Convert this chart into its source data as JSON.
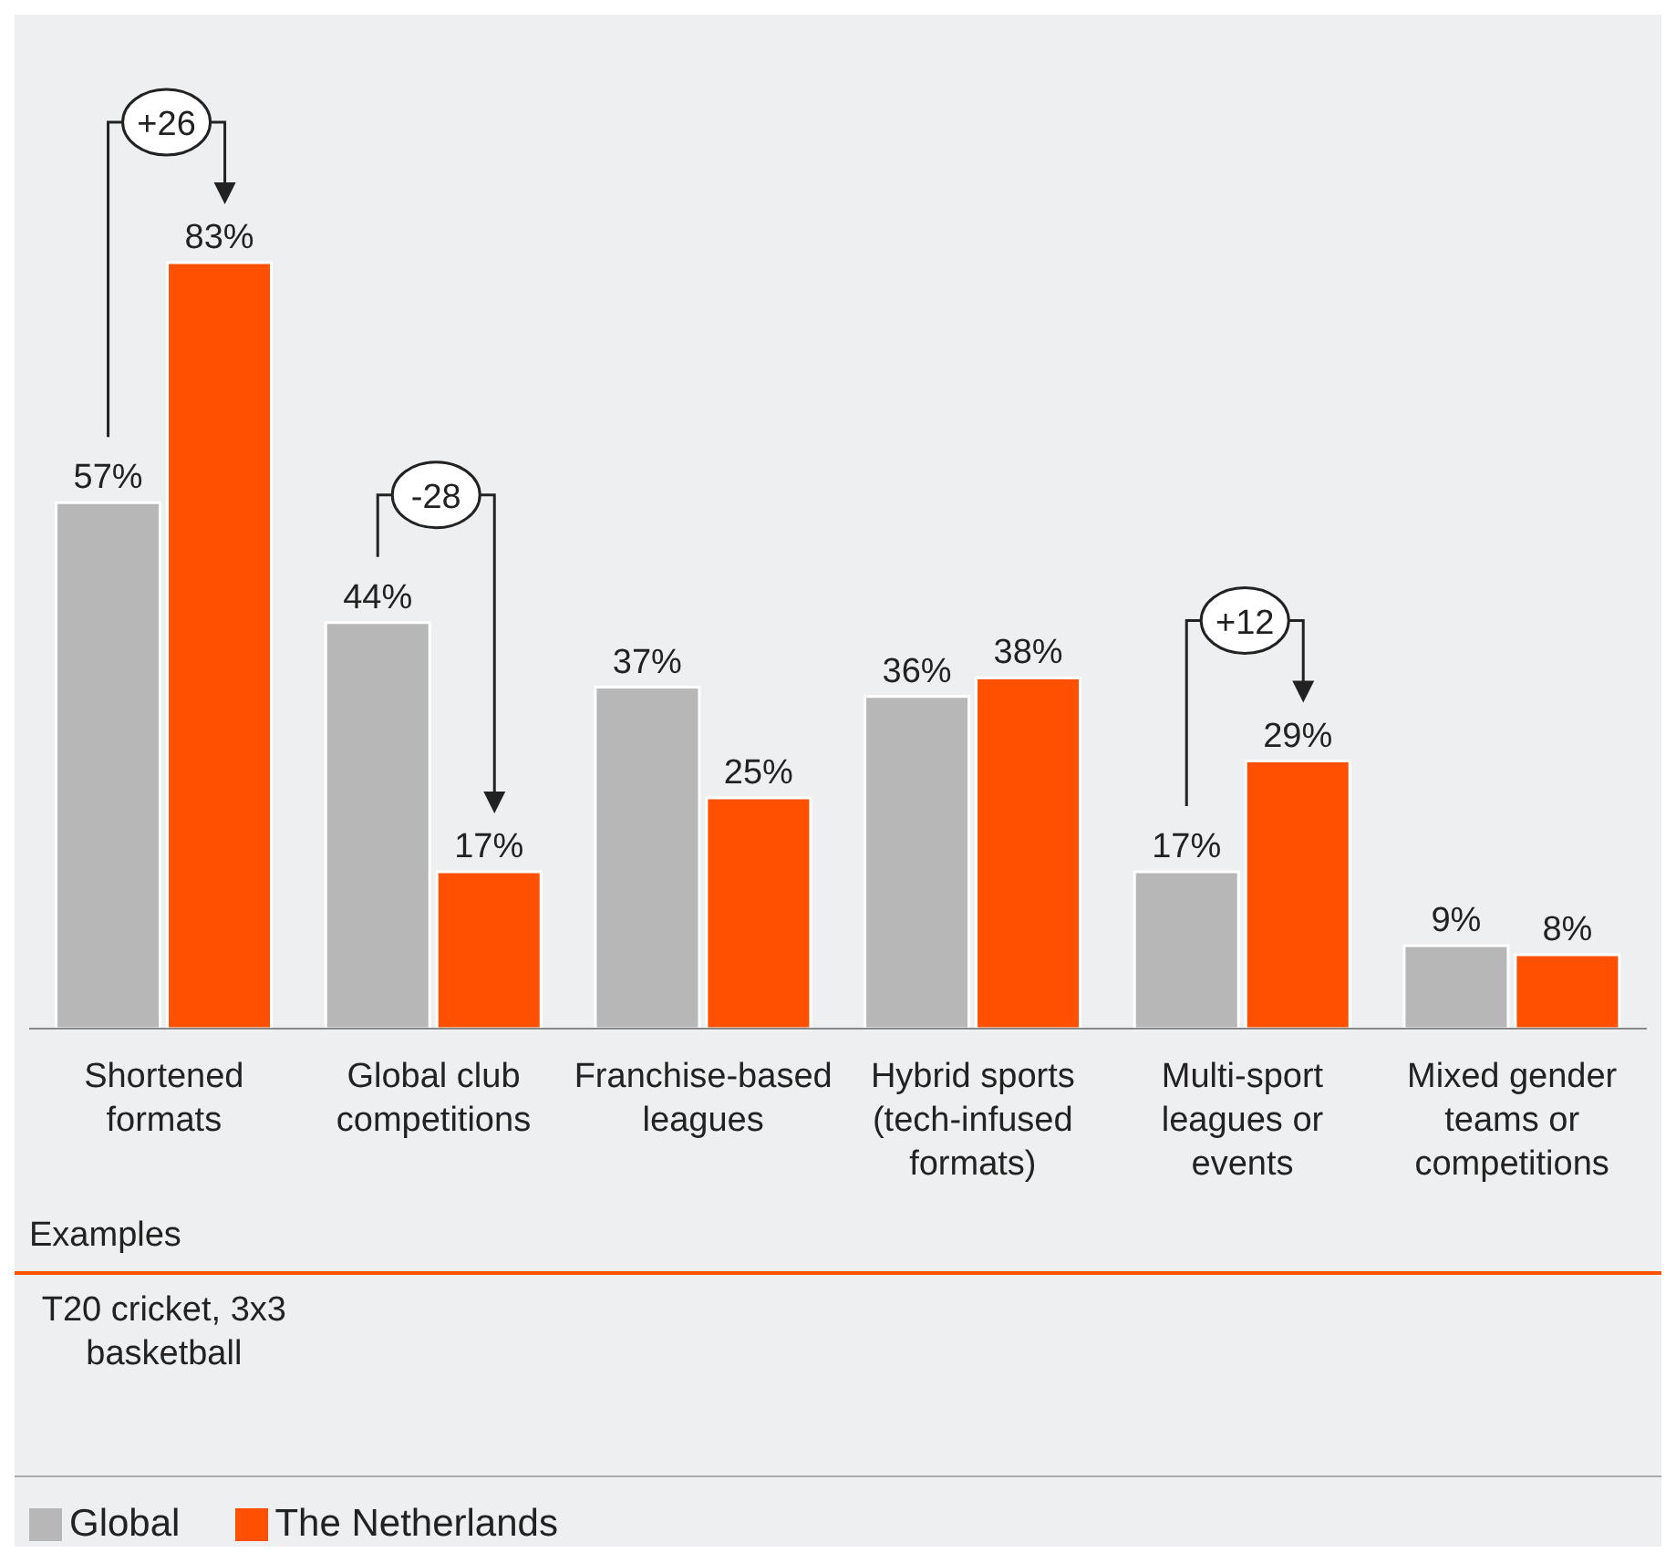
{
  "chart_data": {
    "type": "bar",
    "categories": [
      "Shortened formats",
      "Global club competitions",
      "Franchise-based leagues",
      "Hybrid sports (tech-infused formats)",
      "Multi-sport leagues or events",
      "Mixed gender teams or competitions"
    ],
    "series": [
      {
        "name": "Global",
        "color": "#b7b7b7",
        "values": [
          57,
          44,
          37,
          36,
          17,
          9
        ],
        "value_labels": [
          "57%",
          "44%",
          "37%",
          "36%",
          "17%",
          "9%"
        ]
      },
      {
        "name": "The Netherlands",
        "color": "#fe5000",
        "values": [
          83,
          17,
          25,
          38,
          29,
          8
        ],
        "value_labels": [
          "83%",
          "17%",
          "25%",
          "38%",
          "29%",
          "8%"
        ]
      }
    ],
    "annotations": [
      "+26",
      "-28",
      "+12",
      "Examples",
      "T20 cricket, 3x3 basketball"
    ],
    "legend": "bottom left"
  }
}
